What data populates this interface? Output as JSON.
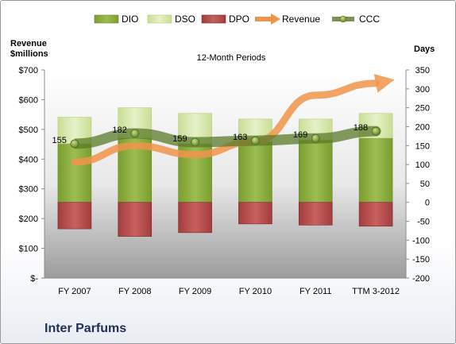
{
  "company": "Inter Parfums",
  "chart_data": {
    "type": "bar",
    "subtitle": "12-Month Periods",
    "left_axis_title": [
      "Revenue",
      "$millions"
    ],
    "right_axis_title": "Days",
    "categories": [
      "FY 2007",
      "FY 2008",
      "FY 2009",
      "FY 2010",
      "FY 2011",
      "TTM 3-2012"
    ],
    "left_ticks": [
      "$-",
      "$100",
      "$200",
      "$300",
      "$400",
      "$500",
      "$600",
      "$700"
    ],
    "left_ylim": [
      0,
      700
    ],
    "right_ticks": [
      "-200",
      "-150",
      "-100",
      "-50",
      "0",
      "50",
      "100",
      "150",
      "200",
      "250",
      "300",
      "350"
    ],
    "right_ylim": [
      -200,
      350
    ],
    "legend_placement": "top",
    "series": [
      {
        "name": "DIO",
        "axis": "days",
        "values": [
          155,
          170,
          155,
          160,
          165,
          170
        ],
        "color": "#86a83a"
      },
      {
        "name": "DSO",
        "axis": "days",
        "values": [
          70,
          80,
          80,
          60,
          55,
          65
        ],
        "color": "#d8e9a8"
      },
      {
        "name": "DPO",
        "axis": "days",
        "values": [
          -70,
          -90,
          -80,
          -57,
          -60,
          -63
        ],
        "color": "#b84a4a"
      },
      {
        "name": "Revenue",
        "axis": "revenue",
        "values": [
          390,
          445,
          415,
          460,
          615,
          655
        ],
        "color": "#f0944a"
      },
      {
        "name": "CCC",
        "axis": "days",
        "values": [
          155,
          182,
          159,
          163,
          169,
          188
        ],
        "labels": [
          "155",
          "182",
          "159",
          "163",
          "169",
          "188"
        ],
        "color": "#5a7a2a"
      }
    ],
    "grid": false
  }
}
